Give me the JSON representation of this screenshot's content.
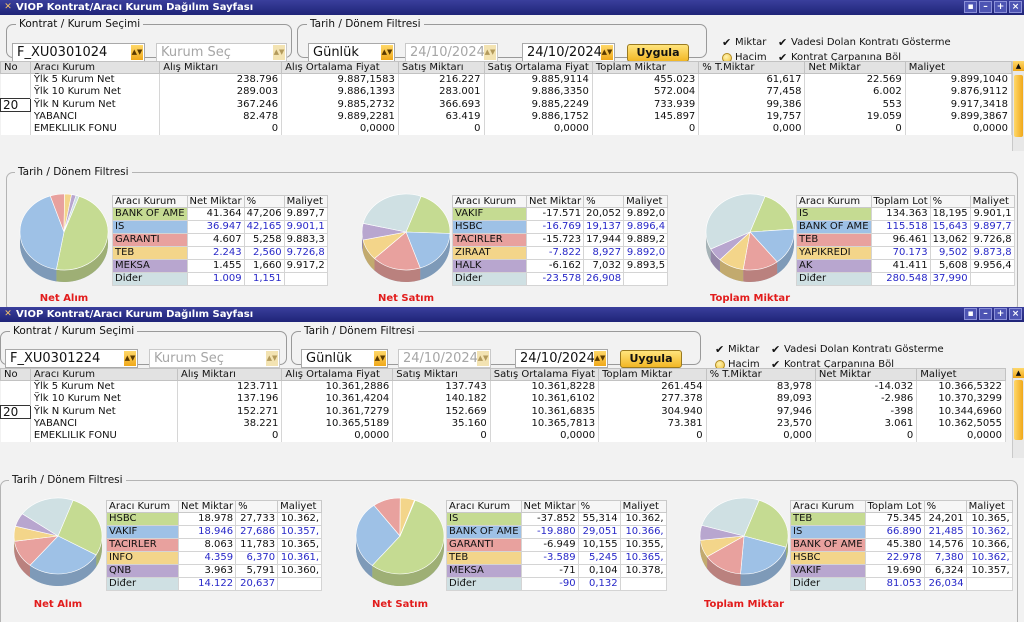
{
  "window_title": "VIOP Kontrat/Aracı Kurum Dağılım Sayfası",
  "window_buttons": [
    "▪",
    "–",
    "+",
    "×"
  ],
  "labels": {
    "contract_group": "Kontrat / Kurum Seçimi",
    "date_group": "Tarih / Dönem Filtresi",
    "institution_placeholder": "Kurum Seç",
    "apply": "Uygula",
    "miktar": "Miktar",
    "hacim": "Hacim",
    "expired": "Vadesi Dolan Kontratı Gösterme",
    "multiplier": "Kontrat Çarpanına Böl",
    "chart_section": "Tarih / Dönem Filtresi",
    "col_institution": "Aracı Kurum",
    "col_net": "Net Miktar",
    "col_pct": "%",
    "col_cost": "Maliyet",
    "col_total_lot": "Toplam Lot",
    "pie_buy": "Net Alım",
    "pie_sell": "Net Satım",
    "pie_total": "Toplam Miktar"
  },
  "colors": {
    "green": "#c5db92",
    "blue": "#9ec1e6",
    "red": "#e8a19e",
    "yellow": "#f3d58a",
    "purple": "#b8a6cf",
    "grey": "#cfe0e3"
  },
  "columns": [
    "No",
    "Aracı Kurum",
    "Alış Miktarı",
    "Alış Ortalama Fiyat",
    "Satış Miktarı",
    "Satış Ortalama Fiyat",
    "Toplam Miktar",
    "% T.Miktar",
    "Net Miktar",
    "Maliyet"
  ],
  "panels": [
    {
      "contract": "F_XU0301024",
      "period": "Günlük",
      "date_from": "24/10/2024",
      "date_to": "24/10/2024",
      "no_value": "20",
      "rows": [
        [
          "",
          "Ÿlk 5 Kurum Net",
          "238.796",
          "9.887,1583",
          "216.227",
          "9.885,9114",
          "455.023",
          "61,617",
          "22.569",
          "9.899,1040"
        ],
        [
          "",
          "Ÿlk 10 Kurum Net",
          "289.003",
          "9.886,1393",
          "283.001",
          "9.886,3350",
          "572.004",
          "77,458",
          "6.002",
          "9.876,9112"
        ],
        [
          "20",
          "Ÿlk N Kurum Net",
          "367.246",
          "9.885,2732",
          "366.693",
          "9.885,2249",
          "733.939",
          "99,386",
          "553",
          "9.917,3418"
        ],
        [
          "",
          "YABANCI",
          "82.478",
          "9.889,2281",
          "63.419",
          "9.886,1752",
          "145.897",
          "19,757",
          "19.059",
          "9.899,3867"
        ],
        [
          "",
          "EMEKLILIK FONU",
          "0",
          "0,0000",
          "0",
          "0,0000",
          "0",
          "0,000",
          "0",
          "0,0000"
        ]
      ],
      "pies": [
        {
          "label_key": "pie_buy",
          "has_lot": false,
          "rows": [
            [
              "BANK OF AME",
              "41.364",
              "47,206",
              "9.897,7",
              "green"
            ],
            [
              "IS",
              "36.947",
              "42,165",
              "9.901,1",
              "blue"
            ],
            [
              "GARANTI",
              "4.607",
              "5,258",
              "9.883,3",
              "red"
            ],
            [
              "TEB",
              "2.243",
              "2,560",
              "9.726,8",
              "yellow"
            ],
            [
              "MEKSA",
              "1.455",
              "1,660",
              "9.917,2",
              "purple"
            ],
            [
              "Diđer",
              "1.009",
              "1,151",
              "",
              "grey"
            ]
          ],
          "shares": [
            47.206,
            42.165,
            5.258,
            2.56,
            1.66,
            1.151
          ]
        },
        {
          "label_key": "pie_sell",
          "has_lot": false,
          "rows": [
            [
              "VAKIF",
              "-17.571",
              "20,052",
              "9.892,0",
              "green"
            ],
            [
              "HSBC",
              "-16.769",
              "19,137",
              "9.896,4",
              "blue"
            ],
            [
              "TACIRLER",
              "-15.723",
              "17,944",
              "9.889,2",
              "red"
            ],
            [
              "ZIRAAT",
              "-7.822",
              "8,927",
              "9.892,0",
              "yellow"
            ],
            [
              "HALK",
              "-6.162",
              "7,032",
              "9.893,5",
              "purple"
            ],
            [
              "Diđer",
              "-23.578",
              "26,908",
              "",
              "grey"
            ]
          ],
          "shares": [
            20.052,
            19.137,
            17.944,
            8.927,
            7.032,
            26.908
          ]
        },
        {
          "label_key": "pie_total",
          "has_lot": true,
          "rows": [
            [
              "IS",
              "134.363",
              "18,195",
              "9.901,1",
              "green"
            ],
            [
              "BANK OF AME",
              "115.518",
              "15,643",
              "9.897,7",
              "blue"
            ],
            [
              "TEB",
              "96.461",
              "13,062",
              "9.726,8",
              "red"
            ],
            [
              "YAPIKREDI",
              "70.173",
              "9,502",
              "9.873,8",
              "yellow"
            ],
            [
              "AK",
              "41.411",
              "5,608",
              "9.956,4",
              "purple"
            ],
            [
              "Diđer",
              "280.548",
              "37,990",
              "",
              "grey"
            ]
          ],
          "shares": [
            18.195,
            15.643,
            13.062,
            9.502,
            5.608,
            37.99
          ]
        }
      ]
    },
    {
      "contract": "F_XU0301224",
      "period": "Günlük",
      "date_from": "24/10/2024",
      "date_to": "24/10/2024",
      "no_value": "20",
      "rows": [
        [
          "",
          "Ÿlk 5 Kurum Net",
          "123.711",
          "10.361,2886",
          "137.743",
          "10.361,8228",
          "261.454",
          "83,978",
          "-14.032",
          "10.366,5322"
        ],
        [
          "",
          "Ÿlk 10 Kurum Net",
          "137.196",
          "10.361,4204",
          "140.182",
          "10.361,6102",
          "277.378",
          "89,093",
          "-2.986",
          "10.370,3299"
        ],
        [
          "20",
          "Ÿlk N Kurum Net",
          "152.271",
          "10.361,7279",
          "152.669",
          "10.361,6835",
          "304.940",
          "97,946",
          "-398",
          "10.344,6960"
        ],
        [
          "",
          "YABANCI",
          "38.221",
          "10.365,5189",
          "35.160",
          "10.365,7813",
          "73.381",
          "23,570",
          "3.061",
          "10.362,5055"
        ],
        [
          "",
          "EMEKLILIK FONU",
          "0",
          "0,0000",
          "0",
          "0,0000",
          "0",
          "0,000",
          "0",
          "0,0000"
        ]
      ],
      "pies": [
        {
          "label_key": "pie_buy",
          "has_lot": false,
          "rows": [
            [
              "HSBC",
              "18.978",
              "27,733",
              "10.362,",
              "green"
            ],
            [
              "VAKIF",
              "18.946",
              "27,686",
              "10.357,",
              "blue"
            ],
            [
              "TACIRLER",
              "8.063",
              "11,783",
              "10.365,",
              "red"
            ],
            [
              "INFO",
              "4.359",
              "6,370",
              "10.361,",
              "yellow"
            ],
            [
              "QNB",
              "3.963",
              "5,791",
              "10.360,",
              "purple"
            ],
            [
              "Diđer",
              "14.122",
              "20,637",
              "",
              "grey"
            ]
          ],
          "shares": [
            27.733,
            27.686,
            11.783,
            6.37,
            5.791,
            20.637
          ]
        },
        {
          "label_key": "pie_sell",
          "has_lot": false,
          "rows": [
            [
              "IS",
              "-37.852",
              "55,314",
              "10.362,",
              "green"
            ],
            [
              "BANK OF AME",
              "-19.880",
              "29,051",
              "10.366,",
              "blue"
            ],
            [
              "GARANTI",
              "-6.949",
              "10,155",
              "10.355,",
              "red"
            ],
            [
              "TEB",
              "-3.589",
              "5,245",
              "10.365,",
              "yellow"
            ],
            [
              "MEKSA",
              "-71",
              "0,104",
              "10.378,",
              "purple"
            ],
            [
              "Diđer",
              "-90",
              "0,132",
              "",
              "grey"
            ]
          ],
          "shares": [
            55.314,
            29.051,
            10.155,
            5.245,
            0.104,
            0.132
          ]
        },
        {
          "label_key": "pie_total",
          "has_lot": true,
          "rows": [
            [
              "TEB",
              "75.345",
              "24,201",
              "10.365,",
              "green"
            ],
            [
              "IS",
              "66.890",
              "21,485",
              "10.362,",
              "blue"
            ],
            [
              "BANK OF AME",
              "45.380",
              "14,576",
              "10.366,",
              "red"
            ],
            [
              "HSBC",
              "22.978",
              "7,380",
              "10.362,",
              "yellow"
            ],
            [
              "VAKIF",
              "19.690",
              "6,324",
              "10.357,",
              "purple"
            ],
            [
              "Diđer",
              "81.053",
              "26,034",
              "",
              "grey"
            ]
          ],
          "shares": [
            24.201,
            21.485,
            14.576,
            7.38,
            6.324,
            26.034
          ]
        }
      ]
    }
  ]
}
